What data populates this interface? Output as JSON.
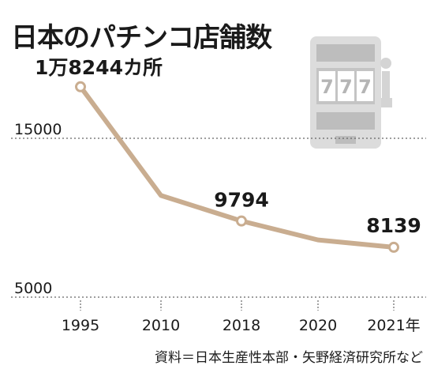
{
  "title": "日本のパチンコ店舗数",
  "source": "資料＝日本生産性本部・矢野経済研究所など",
  "chart_data": {
    "type": "line",
    "title": "日本のパチンコ店舗数",
    "xlabel": "",
    "ylabel": "",
    "categories": [
      "1995",
      "2010",
      "2018",
      "2020",
      "2021年"
    ],
    "x_tick_labels": [
      "1995",
      "2010",
      "2018",
      "2020",
      "2021年"
    ],
    "values": [
      18244,
      11400,
      9794,
      8600,
      8139
    ],
    "ylim": [
      5000,
      19500
    ],
    "y_gridlines": [
      15000,
      5000
    ],
    "y_tick_labels": [
      "15000",
      "5000"
    ],
    "data_labels": [
      {
        "index": 0,
        "text": "1万8244カ所"
      },
      {
        "index": 2,
        "text": "9794"
      },
      {
        "index": 4,
        "text": "8139"
      }
    ],
    "line_color": "#c9ad90",
    "grid": true,
    "legend": "none"
  },
  "illustration": {
    "name": "slot-machine-icon",
    "reels": [
      "7",
      "7",
      "7"
    ],
    "color": "#dcdcdc"
  }
}
